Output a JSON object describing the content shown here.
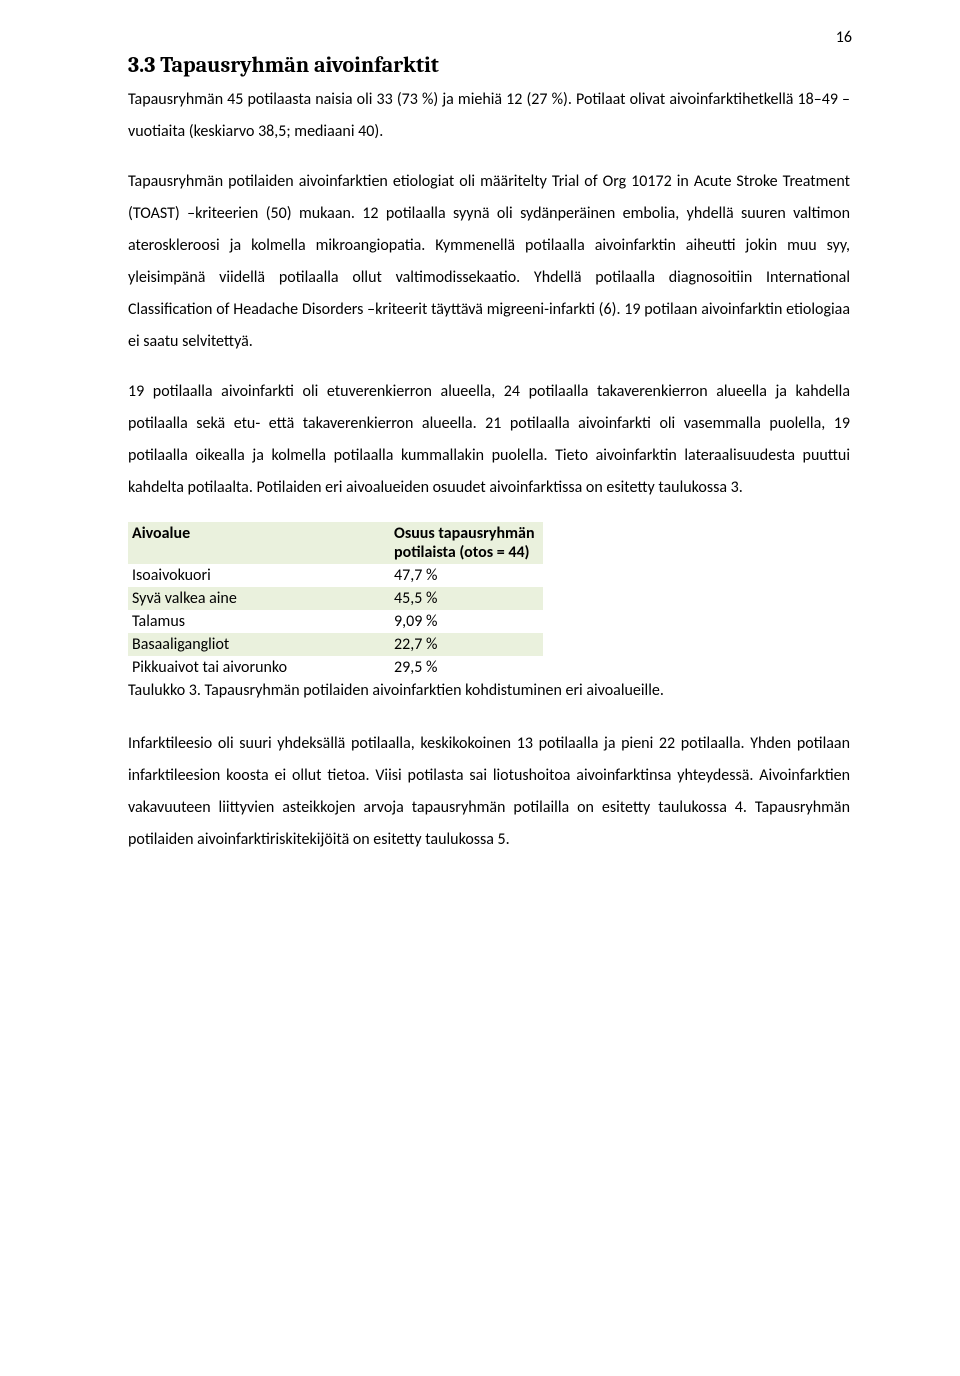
{
  "page_number": "16",
  "heading": "3.3 Tapausryhmän aivoinfarktit",
  "para1": "Tapausryhmän 45 potilaasta naisia oli 33 (73 %) ja miehiä 12 (27 %). Potilaat olivat aivoinfarktihetkellä 18–49 –vuotiaita (keskiarvo 38,5; mediaani 40).",
  "para2": "Tapausryhmän potilaiden aivoinfarktien etiologiat oli määritelty Trial of Org 10172 in Acute Stroke Treatment (TOAST) –kriteerien (50) mukaan. 12 potilaalla syynä oli sydänperäinen embolia, yhdellä suuren valtimon ateroskleroosi ja kolmella mikroangiopatia. Kymmenellä potilaalla aivoinfarktin aiheutti jokin muu syy, yleisimpänä viidellä potilaalla ollut valtimodissekaatio. Yhdellä potilaalla diagnosoitiin International Classification of Headache Disorders –kriteerit täyttävä migreeni-infarkti (6). 19 potilaan aivoinfarktin etiologiaa ei saatu selvitettyä.",
  "para3": "19 potilaalla aivoinfarkti oli etuverenkierron alueella, 24 potilaalla takaverenkierron alueella ja kahdella potilaalla sekä etu- että takaverenkierron alueella. 21 potilaalla aivoinfarkti oli vasemmalla puolella, 19 potilaalla oikealla ja kolmella potilaalla kummallakin puolella. Tieto aivoinfarktin lateraalisuudesta puuttui kahdelta potilaalta. Potilaiden eri aivoalueiden osuudet aivoinfarktissa on esitetty taulukossa 3.",
  "table": {
    "header_col1": "Aivoalue",
    "header_col2_l1": "Osuus tapausryhmän",
    "header_col2_l2": "potilaista (otos = 44)",
    "rows": [
      {
        "label": "Isoaivokuori",
        "value": "47,7 %"
      },
      {
        "label": "Syvä valkea aine",
        "value": "45,5 %"
      },
      {
        "label": "Talamus",
        "value": "9,09 %"
      },
      {
        "label": "Basaaligangliot",
        "value": "22,7 %"
      },
      {
        "label": "Pikkuaivot tai aivorunko",
        "value": "29,5 %"
      }
    ],
    "caption": "Taulukko 3. Tapausryhmän potilaiden aivoinfarktien kohdistuminen eri aivoalueille.",
    "colors": {
      "row_highlight": "#eaf1dd",
      "row_plain": "#ffffff",
      "text": "#000000"
    }
  },
  "para4": "Infarktileesio oli suuri yhdeksällä potilaalla, keskikokoinen 13 potilaalla ja pieni 22 potilaalla. Yhden potilaan infarktileesion koosta ei ollut tietoa. Viisi potilasta sai liotushoitoa aivoinfarktinsa yhteydessä. Aivoinfarktien vakavuuteen liittyvien asteikkojen arvoja tapausryhmän potilailla on esitetty taulukossa 4. Tapausryhmän potilaiden aivoinfarktiriskitekijöitä on esitetty taulukossa 5."
}
